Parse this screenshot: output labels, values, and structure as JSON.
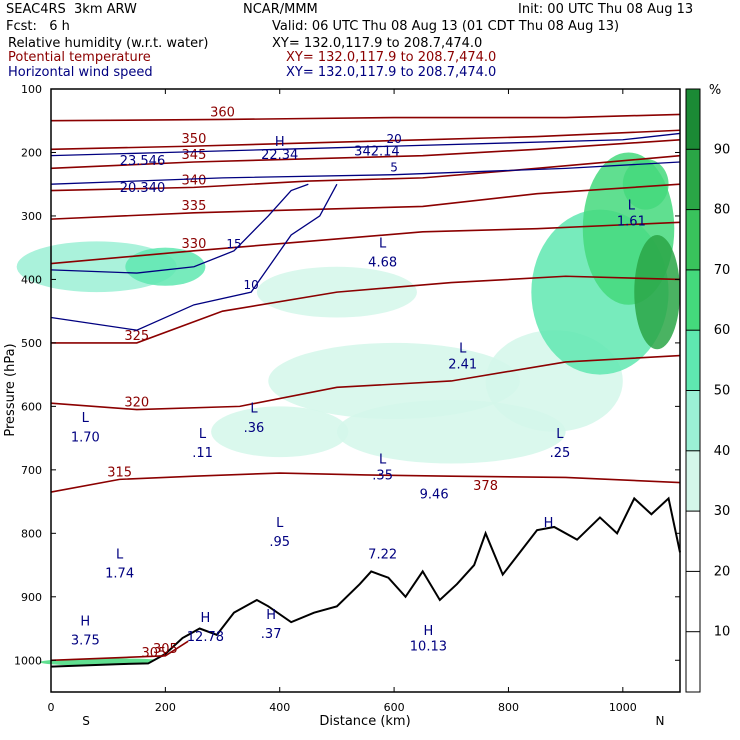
{
  "header": {
    "model": "SEAC4RS  3km ARW",
    "org": "NCAR/MMM",
    "init": "Init: 00 UTC Thu 08 Aug 13",
    "fcst": "Fcst:   6 h",
    "valid": "Valid: 06 UTC Thu 08 Aug 13 (01 CDT Thu 08 Aug 13)",
    "fields": [
      {
        "name": "Relative humidity (w.r.t. water)",
        "xy": "XY= 132.0,117.9 to 208.7,474.0",
        "color": "#000000"
      },
      {
        "name": "Potential temperature",
        "xy": "XY= 132.0,117.9 to 208.7,474.0",
        "color": "#8b0000"
      },
      {
        "name": "Horizontal wind speed",
        "xy": "XY= 132.0,117.9 to 208.7,474.0",
        "color": "#000080"
      }
    ]
  },
  "chart_data": {
    "type": "heatmap",
    "xlabel": "Distance (km)",
    "ylabel": "Pressure (hPa)",
    "x_ticks": [
      0,
      200,
      400,
      600,
      800,
      1000
    ],
    "y_ticks": [
      100,
      200,
      300,
      400,
      500,
      600,
      700,
      800,
      900,
      1000
    ],
    "xlim": [
      0,
      1100
    ],
    "ylim": [
      1050,
      100
    ],
    "x_end_labels": {
      "left": "S",
      "right": "N"
    },
    "colorbar": {
      "unit": "%",
      "ticks": [
        10,
        20,
        30,
        40,
        50,
        60,
        70,
        80,
        90
      ],
      "levels": [
        0,
        30,
        40,
        50,
        60,
        70,
        80,
        90,
        100
      ],
      "colors": [
        "#ffffff",
        "#d4f7ea",
        "#9bf0d5",
        "#5fe8b0",
        "#44d97c",
        "#39c35c",
        "#2aa646",
        "#1b8a35",
        "#0e6b22"
      ]
    },
    "terrain": [
      [
        0,
        1010
      ],
      [
        60,
        1008
      ],
      [
        120,
        1006
      ],
      [
        170,
        1005
      ],
      [
        200,
        990
      ],
      [
        230,
        965
      ],
      [
        260,
        950
      ],
      [
        290,
        960
      ],
      [
        320,
        925
      ],
      [
        360,
        905
      ],
      [
        380,
        915
      ],
      [
        420,
        940
      ],
      [
        460,
        925
      ],
      [
        500,
        915
      ],
      [
        540,
        880
      ],
      [
        560,
        860
      ],
      [
        590,
        870
      ],
      [
        620,
        900
      ],
      [
        650,
        860
      ],
      [
        680,
        905
      ],
      [
        710,
        880
      ],
      [
        740,
        850
      ],
      [
        760,
        800
      ],
      [
        790,
        865
      ],
      [
        820,
        830
      ],
      [
        850,
        795
      ],
      [
        880,
        790
      ],
      [
        920,
        810
      ],
      [
        960,
        775
      ],
      [
        990,
        800
      ],
      [
        1020,
        745
      ],
      [
        1050,
        770
      ],
      [
        1080,
        745
      ],
      [
        1100,
        830
      ]
    ],
    "theta_contours": [
      {
        "label": "305",
        "points": [
          [
            0,
            1000
          ],
          [
            200,
            993
          ],
          [
            240,
            970
          ]
        ]
      },
      {
        "label": "315",
        "points": [
          [
            0,
            735
          ],
          [
            120,
            715
          ],
          [
            250,
            710
          ],
          [
            400,
            705
          ],
          [
            550,
            708
          ],
          [
            700,
            710
          ],
          [
            900,
            712
          ],
          [
            1100,
            720
          ]
        ]
      },
      {
        "label": "320",
        "points": [
          [
            0,
            595
          ],
          [
            150,
            605
          ],
          [
            330,
            600
          ],
          [
            500,
            570
          ],
          [
            700,
            560
          ],
          [
            900,
            530
          ],
          [
            1100,
            520
          ]
        ]
      },
      {
        "label": "325",
        "points": [
          [
            0,
            500
          ],
          [
            150,
            500
          ],
          [
            300,
            450
          ],
          [
            500,
            420
          ],
          [
            700,
            405
          ],
          [
            900,
            395
          ],
          [
            1100,
            400
          ]
        ]
      },
      {
        "label": "330",
        "points": [
          [
            0,
            375
          ],
          [
            250,
            355
          ],
          [
            450,
            340
          ],
          [
            650,
            325
          ],
          [
            850,
            320
          ],
          [
            1100,
            310
          ]
        ]
      },
      {
        "label": "335",
        "points": [
          [
            0,
            305
          ],
          [
            250,
            295
          ],
          [
            450,
            290
          ],
          [
            650,
            285
          ],
          [
            850,
            265
          ],
          [
            1100,
            250
          ]
        ]
      },
      {
        "label": "340",
        "points": [
          [
            0,
            260
          ],
          [
            250,
            255
          ],
          [
            450,
            245
          ],
          [
            650,
            240
          ],
          [
            850,
            225
          ],
          [
            1100,
            205
          ]
        ]
      },
      {
        "label": "345",
        "points": [
          [
            0,
            225
          ],
          [
            250,
            215
          ],
          [
            450,
            210
          ],
          [
            650,
            205
          ],
          [
            850,
            195
          ],
          [
            1100,
            180
          ]
        ]
      },
      {
        "label": "350",
        "points": [
          [
            0,
            195
          ],
          [
            250,
            190
          ],
          [
            450,
            185
          ],
          [
            650,
            180
          ],
          [
            850,
            175
          ],
          [
            1100,
            165
          ]
        ]
      },
      {
        "label": "360",
        "points": [
          [
            0,
            150
          ],
          [
            300,
            148
          ],
          [
            600,
            145
          ],
          [
            900,
            145
          ],
          [
            1100,
            140
          ]
        ]
      }
    ],
    "wind_contours": [
      {
        "label": "5",
        "points": [
          [
            0,
            250
          ],
          [
            300,
            240
          ],
          [
            600,
            235
          ],
          [
            900,
            225
          ],
          [
            1100,
            215
          ]
        ]
      },
      {
        "label": "10",
        "points": [
          [
            0,
            460
          ],
          [
            150,
            480
          ],
          [
            250,
            440
          ],
          [
            350,
            420
          ],
          [
            420,
            330
          ],
          [
            470,
            300
          ],
          [
            500,
            250
          ]
        ]
      },
      {
        "label": "15",
        "points": [
          [
            0,
            385
          ],
          [
            150,
            390
          ],
          [
            250,
            380
          ],
          [
            320,
            355
          ],
          [
            380,
            300
          ],
          [
            420,
            260
          ],
          [
            450,
            250
          ]
        ]
      },
      {
        "label": "20",
        "points": [
          [
            0,
            205
          ],
          [
            200,
            200
          ],
          [
            400,
            195
          ],
          [
            600,
            190
          ],
          [
            800,
            185
          ],
          [
            1000,
            180
          ],
          [
            1100,
            170
          ]
        ]
      }
    ],
    "annotations": [
      {
        "text": "L",
        "x": 60,
        "y": 625,
        "color": "#000080"
      },
      {
        "text": "1.70",
        "x": 60,
        "y": 655,
        "color": "#000080"
      },
      {
        "text": "L",
        "x": 265,
        "y": 650,
        "color": "#000080"
      },
      {
        "text": ".11",
        "x": 265,
        "y": 680,
        "color": "#000080"
      },
      {
        "text": "L",
        "x": 355,
        "y": 610,
        "color": "#000080"
      },
      {
        "text": ".36",
        "x": 355,
        "y": 640,
        "color": "#000080"
      },
      {
        "text": "L",
        "x": 400,
        "y": 790,
        "color": "#000080"
      },
      {
        "text": ".95",
        "x": 400,
        "y": 820,
        "color": "#000080"
      },
      {
        "text": "L",
        "x": 120,
        "y": 840,
        "color": "#000080"
      },
      {
        "text": "1.74",
        "x": 120,
        "y": 870,
        "color": "#000080"
      },
      {
        "text": "H",
        "x": 60,
        "y": 945,
        "color": "#000080"
      },
      {
        "text": "3.75",
        "x": 60,
        "y": 975,
        "color": "#000080"
      },
      {
        "text": "H",
        "x": 270,
        "y": 940,
        "color": "#000080"
      },
      {
        "text": "12.78",
        "x": 270,
        "y": 970,
        "color": "#000080"
      },
      {
        "text": "H",
        "x": 385,
        "y": 935,
        "color": "#000080"
      },
      {
        "text": ".37",
        "x": 385,
        "y": 965,
        "color": "#000080"
      },
      {
        "text": "L",
        "x": 580,
        "y": 690,
        "color": "#000080"
      },
      {
        "text": ".35",
        "x": 580,
        "y": 715,
        "color": "#000080"
      },
      {
        "text": "7.22",
        "x": 580,
        "y": 840,
        "color": "#000080"
      },
      {
        "text": "9.46",
        "x": 670,
        "y": 745,
        "color": "#000080"
      },
      {
        "text": "H",
        "x": 660,
        "y": 960,
        "color": "#000080"
      },
      {
        "text": "10.13",
        "x": 660,
        "y": 985,
        "color": "#000080"
      },
      {
        "text": "L",
        "x": 720,
        "y": 515,
        "color": "#000080"
      },
      {
        "text": "2.41",
        "x": 720,
        "y": 540,
        "color": "#000080"
      },
      {
        "text": "L",
        "x": 580,
        "y": 350,
        "color": "#000080"
      },
      {
        "text": "4.68",
        "x": 580,
        "y": 380,
        "color": "#000080"
      },
      {
        "text": "L",
        "x": 890,
        "y": 650,
        "color": "#000080"
      },
      {
        "text": ".25",
        "x": 890,
        "y": 680,
        "color": "#000080"
      },
      {
        "text": "L",
        "x": 1015,
        "y": 290,
        "color": "#000080"
      },
      {
        "text": "1.61",
        "x": 1015,
        "y": 315,
        "color": "#000080"
      },
      {
        "text": "H",
        "x": 870,
        "y": 790,
        "color": "#000080"
      },
      {
        "text": "H",
        "x": 400,
        "y": 190,
        "color": "#000080"
      },
      {
        "text": "22.34",
        "x": 400,
        "y": 210,
        "color": "#000080"
      },
      {
        "text": "23.546",
        "x": 160,
        "y": 220,
        "color": "#000080"
      },
      {
        "text": "20.340",
        "x": 160,
        "y": 262,
        "color": "#000080"
      },
      {
        "text": "342.14",
        "x": 570,
        "y": 205,
        "color": "#000080"
      },
      {
        "text": "378",
        "x": 760,
        "y": 732,
        "color": "#8b0000"
      },
      {
        "text": "305",
        "x": 180,
        "y": 995,
        "color": "#8b0000"
      }
    ]
  }
}
